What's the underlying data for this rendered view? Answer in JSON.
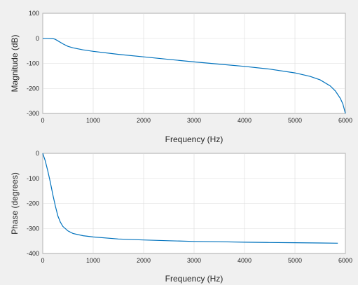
{
  "chart_data": [
    {
      "type": "line",
      "xlabel": "Frequency (Hz)",
      "ylabel": "Magnitude (dB)",
      "xlim": [
        0,
        6000
      ],
      "ylim": [
        -300,
        100
      ],
      "xticks": [
        0,
        1000,
        2000,
        3000,
        4000,
        5000,
        6000
      ],
      "yticks": [
        100,
        0,
        -100,
        -200,
        -300
      ],
      "grid": true,
      "series_color": "#0072bd",
      "series": [
        {
          "x": [
            0,
            100,
            200,
            250,
            300,
            400,
            500,
            600,
            800,
            1000,
            1500,
            2000,
            2500,
            3000,
            3500,
            4000,
            4500,
            5000,
            5300,
            5500,
            5700,
            5800,
            5900,
            5950,
            6000
          ],
          "values": [
            0,
            0,
            -1,
            -4,
            -10,
            -22,
            -32,
            -38,
            -46,
            -52,
            -64,
            -74,
            -84,
            -94,
            -103,
            -112,
            -123,
            -138,
            -152,
            -166,
            -190,
            -210,
            -240,
            -262,
            -300
          ]
        }
      ]
    },
    {
      "type": "line",
      "xlabel": "Frequency (Hz)",
      "ylabel": "Phase (degrees)",
      "xlim": [
        0,
        6000
      ],
      "ylim": [
        -400,
        0
      ],
      "xticks": [
        0,
        1000,
        2000,
        3000,
        4000,
        5000,
        6000
      ],
      "yticks": [
        0,
        -100,
        -200,
        -300,
        -400
      ],
      "grid": true,
      "series_color": "#0072bd",
      "series": [
        {
          "x": [
            0,
            50,
            100,
            150,
            200,
            250,
            300,
            350,
            400,
            500,
            600,
            800,
            1000,
            1500,
            2000,
            2500,
            3000,
            3500,
            4000,
            4500,
            5000,
            5500,
            5850
          ],
          "values": [
            0,
            -30,
            -70,
            -115,
            -165,
            -210,
            -250,
            -275,
            -292,
            -310,
            -320,
            -329,
            -334,
            -342,
            -346,
            -349,
            -352,
            -353,
            -355,
            -356,
            -357,
            -358,
            -359
          ]
        }
      ]
    }
  ]
}
